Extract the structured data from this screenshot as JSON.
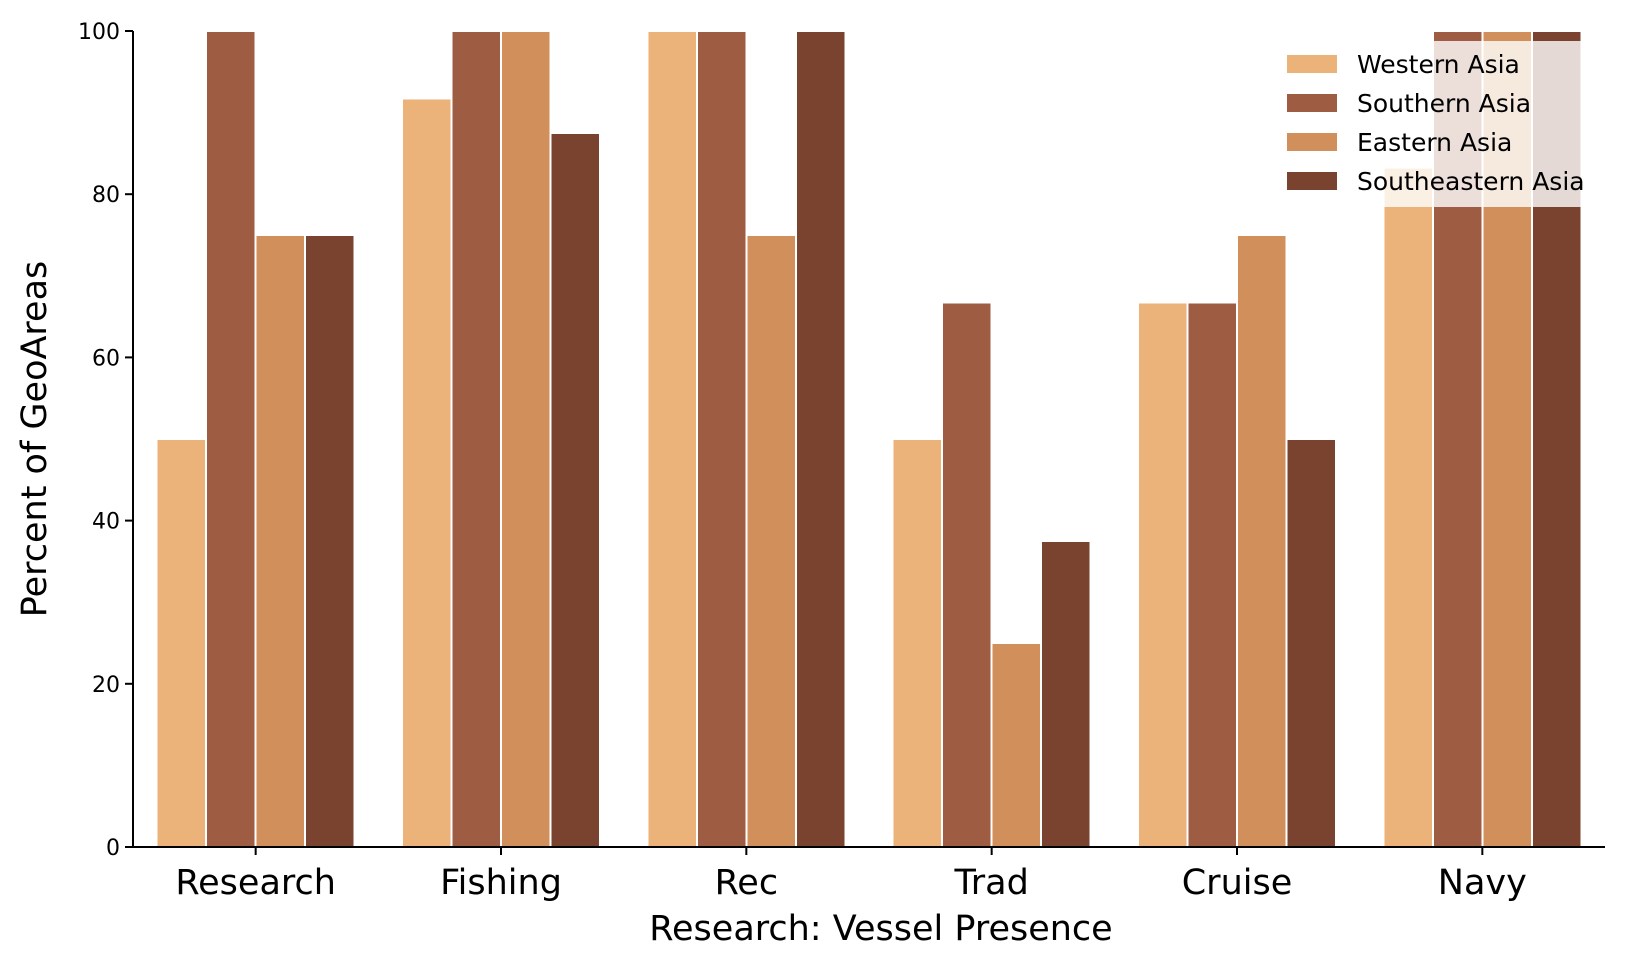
{
  "chart_data": {
    "type": "bar",
    "title": "",
    "xlabel": "Research: Vessel Presence",
    "ylabel": "Percent of GeoAreas",
    "ylim": [
      0,
      100
    ],
    "yticks": [
      "0",
      "20",
      "40",
      "60",
      "80",
      "100"
    ],
    "categories": [
      "Research",
      "Fishing",
      "Rec",
      "Trad",
      "Cruise",
      "Navy"
    ],
    "series": [
      {
        "name": "Western Asia",
        "color": "#EBB27A",
        "values": [
          50,
          91.7,
          100,
          50,
          66.7,
          83.3
        ]
      },
      {
        "name": "Southern Asia",
        "color": "#9E5D42",
        "values": [
          100,
          100,
          100,
          66.7,
          66.7,
          100
        ]
      },
      {
        "name": "Eastern Asia",
        "color": "#D18F5B",
        "values": [
          75,
          100,
          75,
          25,
          75,
          100
        ]
      },
      {
        "name": "Southeastern Asia",
        "color": "#7A4330",
        "values": [
          75,
          87.5,
          100,
          37.5,
          50,
          100
        ]
      }
    ],
    "legend_position": "top-right",
    "grid": false,
    "spines": "left-bottom"
  }
}
